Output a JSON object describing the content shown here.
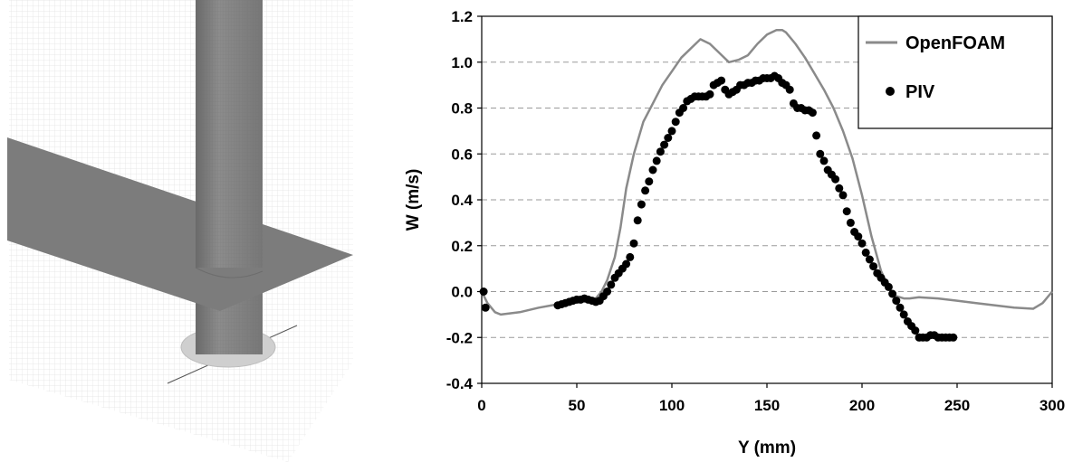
{
  "colors": {
    "openfoam_line": "#8a8a8a",
    "piv_marker": "#000000",
    "grid": "#9a9a9a",
    "mesh_shade": "#7a7a7a",
    "mesh_grid": "#e2e2e2"
  },
  "chart_data": {
    "type": "line",
    "xlabel": "Y (mm)",
    "ylabel": "W (m/s)",
    "xlim": [
      0,
      300
    ],
    "ylim": [
      -0.4,
      1.2
    ],
    "xticks": [
      "0",
      "50",
      "100",
      "150",
      "200",
      "250",
      "300"
    ],
    "yticks": [
      "-0.4",
      "-0.2",
      "0.0",
      "0.2",
      "0.4",
      "0.6",
      "0.8",
      "1.0",
      "1.2"
    ],
    "grid": "horizontal dashed",
    "legend_position": "top-right",
    "legend": [
      "OpenFOAM",
      "PIV"
    ],
    "series": [
      {
        "name": "OpenFOAM",
        "style": "line",
        "x": [
          0,
          3,
          7,
          10,
          20,
          30,
          40,
          45,
          50,
          55,
          60,
          63,
          66,
          70,
          73,
          76,
          80,
          85,
          90,
          95,
          100,
          105,
          110,
          115,
          120,
          125,
          130,
          135,
          140,
          145,
          150,
          155,
          158,
          160,
          165,
          170,
          175,
          180,
          185,
          190,
          195,
          200,
          205,
          210,
          215,
          218,
          222,
          225,
          230,
          240,
          250,
          260,
          270,
          280,
          290,
          295,
          300
        ],
        "y": [
          0.0,
          -0.05,
          -0.09,
          -0.1,
          -0.09,
          -0.07,
          -0.055,
          -0.05,
          -0.045,
          -0.04,
          -0.03,
          0.0,
          0.05,
          0.15,
          0.28,
          0.45,
          0.6,
          0.74,
          0.82,
          0.9,
          0.96,
          1.02,
          1.06,
          1.1,
          1.08,
          1.04,
          1.0,
          1.01,
          1.03,
          1.08,
          1.12,
          1.14,
          1.14,
          1.13,
          1.08,
          1.02,
          0.95,
          0.88,
          0.8,
          0.7,
          0.58,
          0.42,
          0.24,
          0.09,
          0.0,
          -0.02,
          -0.03,
          -0.03,
          -0.025,
          -0.03,
          -0.04,
          -0.05,
          -0.06,
          -0.07,
          -0.075,
          -0.05,
          0.0
        ]
      },
      {
        "name": "PIV",
        "style": "markers",
        "x": [
          1,
          2,
          40,
          42,
          44,
          46,
          48,
          50,
          52,
          54,
          56,
          58,
          60,
          62,
          64,
          66,
          68,
          70,
          72,
          74,
          76,
          78,
          80,
          82,
          84,
          86,
          88,
          90,
          92,
          94,
          96,
          98,
          100,
          102,
          104,
          106,
          108,
          110,
          112,
          114,
          116,
          118,
          120,
          122,
          124,
          126,
          128,
          130,
          132,
          134,
          136,
          138,
          140,
          142,
          144,
          146,
          148,
          150,
          152,
          154,
          156,
          158,
          160,
          162,
          164,
          166,
          168,
          170,
          172,
          174,
          176,
          178,
          180,
          182,
          184,
          186,
          188,
          190,
          192,
          194,
          196,
          198,
          200,
          202,
          204,
          206,
          208,
          210,
          212,
          214,
          216,
          218,
          220,
          222,
          224,
          226,
          228,
          230,
          232,
          234,
          236,
          238,
          240,
          242,
          244,
          246,
          248
        ],
        "y": [
          0.0,
          -0.07,
          -0.06,
          -0.055,
          -0.05,
          -0.045,
          -0.04,
          -0.035,
          -0.035,
          -0.03,
          -0.035,
          -0.04,
          -0.045,
          -0.04,
          -0.02,
          0.0,
          0.03,
          0.06,
          0.08,
          0.1,
          0.12,
          0.15,
          0.21,
          0.31,
          0.38,
          0.44,
          0.48,
          0.53,
          0.57,
          0.61,
          0.64,
          0.67,
          0.7,
          0.74,
          0.78,
          0.8,
          0.83,
          0.84,
          0.85,
          0.85,
          0.85,
          0.85,
          0.86,
          0.9,
          0.91,
          0.92,
          0.88,
          0.86,
          0.87,
          0.88,
          0.9,
          0.9,
          0.91,
          0.91,
          0.92,
          0.92,
          0.93,
          0.93,
          0.93,
          0.94,
          0.93,
          0.91,
          0.9,
          0.88,
          0.82,
          0.8,
          0.8,
          0.79,
          0.79,
          0.78,
          0.68,
          0.6,
          0.57,
          0.53,
          0.51,
          0.49,
          0.45,
          0.42,
          0.35,
          0.3,
          0.26,
          0.24,
          0.21,
          0.17,
          0.14,
          0.11,
          0.08,
          0.06,
          0.04,
          0.02,
          -0.01,
          -0.04,
          -0.07,
          -0.1,
          -0.13,
          -0.15,
          -0.17,
          -0.2,
          -0.2,
          -0.2,
          -0.19,
          -0.19,
          -0.2,
          -0.2,
          -0.2,
          -0.2,
          -0.2
        ]
      }
    ]
  }
}
